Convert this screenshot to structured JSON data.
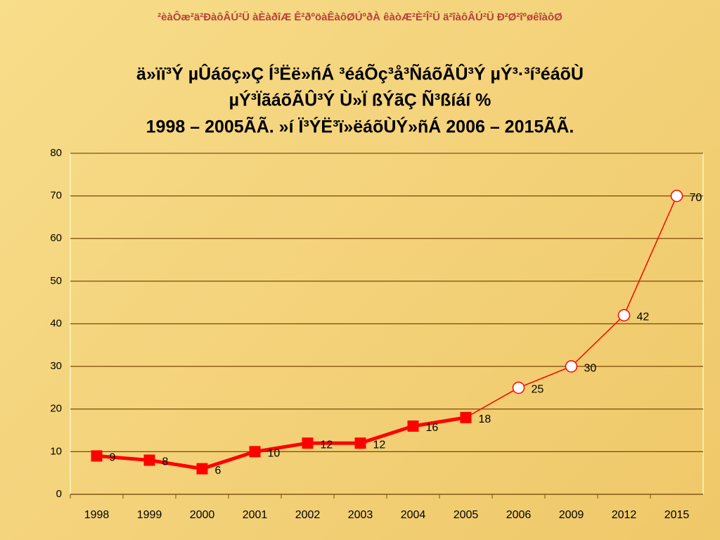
{
  "header": "²èàÔæ²ä²ÐàôÂÚ²Ü  àÈàðîÆ  Ê²ðºöàÊàôØÚºðÀ  êàòÆ²È²Î²Ü  ä²îàôÂÚ²Ü  Ð²Ø²îºøêîàôØ",
  "chart_data": {
    "type": "line",
    "title": [
      "ä»ïï³Ý µÛáõç»Ç Í³Ëë»ñÁ ³éáÕç³å³ÑáõÃÛ³Ý µÝ³·³í³éáõÙ",
      "µÝ³ÏãáõÃÛ³Ý Ù»Ï ßÝãÇ Ñ³ßíáí %",
      "1998 – 2005ÃÃ. »í Ï³ÝË³ï»ëáõÙÝ»ñÁ 2006 – 2015ÃÃ."
    ],
    "categories": [
      "1998",
      "1999",
      "2000",
      "2001",
      "2002",
      "2003",
      "2004",
      "2005",
      "2006",
      "2009",
      "2012",
      "2015"
    ],
    "series": [
      {
        "color": "#ff0000",
        "values": [
          9,
          8,
          6,
          10,
          12,
          12,
          16,
          18,
          null,
          null,
          null,
          null
        ]
      },
      {
        "color": "#ff0000",
        "values": [
          null,
          null,
          null,
          null,
          null,
          null,
          null,
          null,
          25,
          30,
          42,
          70
        ]
      }
    ],
    "ylim": [
      0,
      80
    ],
    "yticks": [
      0,
      10,
      20,
      30,
      40,
      50,
      60,
      70,
      80
    ],
    "grid": true
  }
}
